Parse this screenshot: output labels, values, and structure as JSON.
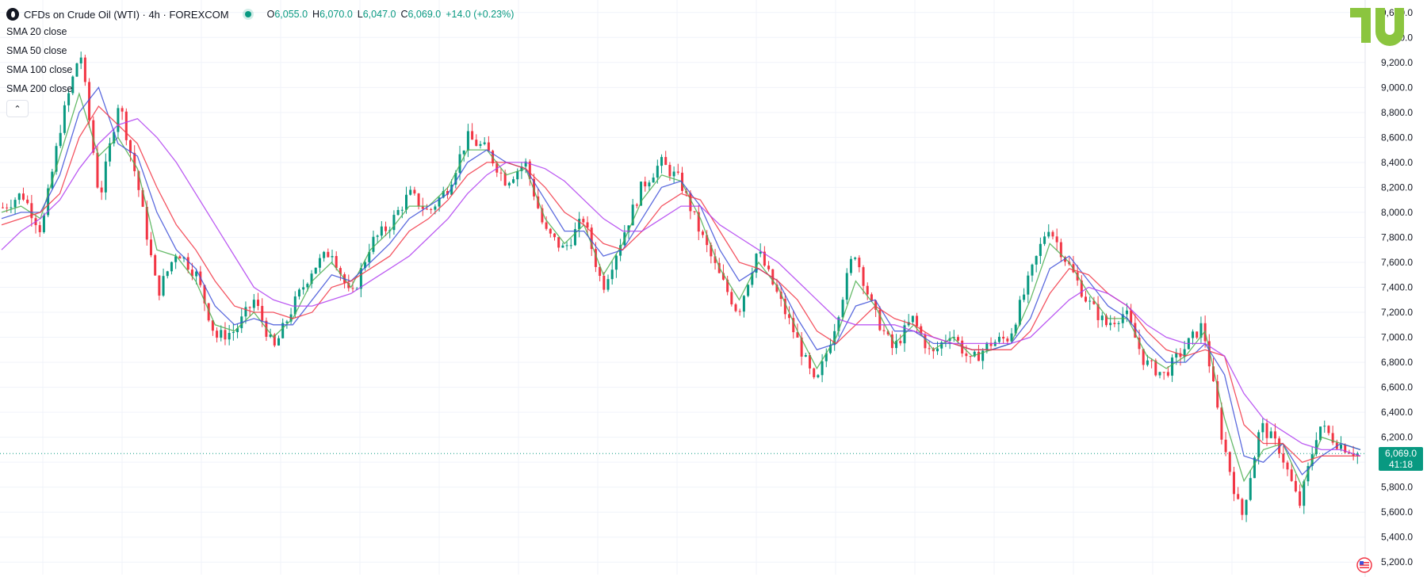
{
  "header": {
    "symbol": "CFDs on Crude Oil (WTI) · 4h · FOREXCOM",
    "ohlc": [
      {
        "k": "O",
        "v": "6,055.0"
      },
      {
        "k": "H",
        "v": "6,070.0"
      },
      {
        "k": "L",
        "v": "6,047.0"
      },
      {
        "k": "C",
        "v": "6,069.0"
      },
      {
        "k": "",
        "v": "+14.0 (+0.23%)"
      }
    ]
  },
  "indicators": [
    "SMA 20 close",
    "SMA 50 close",
    "SMA 100 close",
    "SMA 200 close"
  ],
  "price_label": {
    "price": "6,069.0",
    "countdown": "41:18"
  },
  "colors": {
    "up": "#089981",
    "down": "#f23645",
    "sma20": "#4caf50",
    "sma50": "#3f51d8",
    "sma100": "#f23645",
    "sma200": "#b03ef0",
    "accent": "#089981"
  },
  "icons": {
    "collapse": "chevron-up-icon",
    "logo": "tradingview-logo",
    "flag": "us-flag-icon",
    "symbol": "oil-drop-icon"
  },
  "chart_data": {
    "type": "line",
    "series": [
      {
        "name": "CFDs on Crude Oil (WTI)",
        "values": [
          8040,
          8150,
          7850,
          8700,
          9300,
          8100,
          8900,
          8200,
          7350,
          7700,
          7500,
          7000,
          7050,
          7300,
          6900,
          7250,
          7550,
          7700,
          7300,
          7750,
          7900,
          8150,
          8000,
          8200,
          8600,
          8500,
          8250,
          8400,
          7850,
          7700,
          7950,
          7400,
          7800,
          8200,
          8400,
          8250,
          7850,
          7500,
          7200,
          7700,
          7350,
          7000,
          6600,
          7100,
          7700,
          7200,
          6900,
          7150,
          6850,
          7050,
          6800,
          6950,
          7000,
          7450,
          7900,
          7600,
          7300,
          7100,
          7200,
          6800,
          6700,
          6900,
          7100,
          6200,
          5550,
          6300,
          6100,
          5650,
          6300,
          6150,
          6069
        ]
      },
      {
        "name": "SMA 20",
        "values": [
          8000,
          8050,
          7950,
          8450,
          8950,
          8450,
          8600,
          8350,
          7700,
          7650,
          7450,
          7100,
          7050,
          7200,
          7000,
          7150,
          7450,
          7600,
          7400,
          7700,
          7850,
          8050,
          8050,
          8200,
          8500,
          8500,
          8300,
          8350,
          7950,
          7750,
          7900,
          7500,
          7750,
          8100,
          8300,
          8250,
          7950,
          7550,
          7300,
          7600,
          7400,
          7050,
          6750,
          7000,
          7450,
          7250,
          6950,
          7100,
          6900,
          7000,
          6850,
          6900,
          6950,
          7300,
          7750,
          7600,
          7350,
          7150,
          7150,
          6850,
          6750,
          6850,
          7050,
          6350,
          5850,
          6100,
          6150,
          5800,
          6200,
          6150,
          6100
        ]
      },
      {
        "name": "SMA 50",
        "values": [
          7950,
          8000,
          8000,
          8300,
          8800,
          9000,
          8550,
          8450,
          8000,
          7700,
          7550,
          7250,
          7100,
          7150,
          7100,
          7100,
          7300,
          7500,
          7450,
          7600,
          7750,
          7950,
          8050,
          8150,
          8400,
          8500,
          8400,
          8350,
          8100,
          7850,
          7850,
          7650,
          7700,
          7950,
          8200,
          8250,
          8050,
          7700,
          7450,
          7550,
          7450,
          7150,
          6900,
          6950,
          7250,
          7300,
          7050,
          7050,
          6950,
          6950,
          6900,
          6900,
          6950,
          7150,
          7550,
          7650,
          7450,
          7250,
          7150,
          6950,
          6800,
          6800,
          6950,
          6700,
          6050,
          6000,
          6150,
          5900,
          6050,
          6150,
          6100
        ]
      },
      {
        "name": "SMA 100",
        "values": [
          7900,
          7950,
          8000,
          8150,
          8600,
          8850,
          8700,
          8550,
          8200,
          7900,
          7700,
          7450,
          7250,
          7200,
          7200,
          7150,
          7200,
          7400,
          7450,
          7550,
          7650,
          7850,
          7950,
          8100,
          8300,
          8400,
          8400,
          8350,
          8200,
          8000,
          7900,
          7750,
          7700,
          7850,
          8050,
          8150,
          8100,
          7850,
          7600,
          7550,
          7450,
          7300,
          7050,
          6950,
          7100,
          7250,
          7150,
          7100,
          7000,
          6950,
          6900,
          6900,
          6900,
          7050,
          7350,
          7550,
          7500,
          7350,
          7250,
          7050,
          6900,
          6850,
          6900,
          6850,
          6300,
          6150,
          6150,
          6000,
          6050,
          6050,
          6050
        ]
      },
      {
        "name": "SMA 200",
        "values": [
          7700,
          7850,
          7950,
          8100,
          8350,
          8550,
          8700,
          8750,
          8600,
          8400,
          8150,
          7900,
          7650,
          7400,
          7300,
          7250,
          7250,
          7300,
          7350,
          7450,
          7550,
          7650,
          7800,
          7950,
          8150,
          8300,
          8400,
          8400,
          8350,
          8250,
          8100,
          7950,
          7850,
          7850,
          7950,
          8050,
          8050,
          7900,
          7800,
          7700,
          7600,
          7450,
          7300,
          7150,
          7100,
          7100,
          7100,
          7050,
          7000,
          6950,
          6950,
          6950,
          6950,
          7000,
          7150,
          7300,
          7400,
          7350,
          7250,
          7100,
          7000,
          6950,
          6950,
          6850,
          6550,
          6350,
          6250,
          6150,
          6100,
          6100,
          6050
        ]
      }
    ],
    "y_ticks": [
      "5,200.0",
      "5,400.0",
      "5,600.0",
      "5,800.0",
      "6,000.0",
      "6,200.0",
      "6,400.0",
      "6,600.0",
      "6,800.0",
      "7,000.0",
      "7,200.0",
      "7,400.0",
      "7,600.0",
      "7,800.0",
      "8,000.0",
      "8,200.0",
      "8,400.0",
      "8,600.0",
      "8,800.0",
      "9,000.0",
      "9,200.0",
      "9,400.0",
      "9,600.0"
    ],
    "ylim": [
      5100,
      9700
    ],
    "last_price": 6069,
    "grid": true,
    "legend_position": "top-left"
  }
}
